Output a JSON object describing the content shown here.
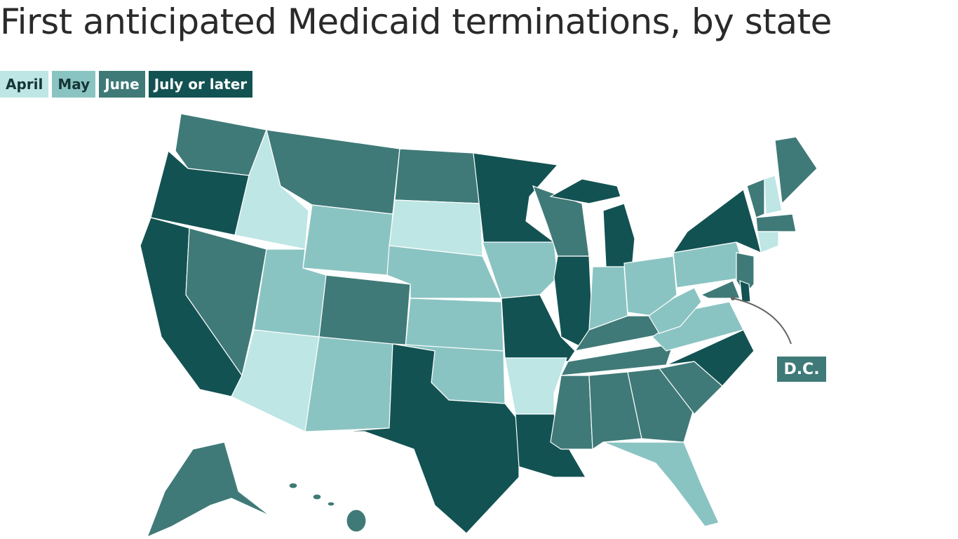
{
  "header": {
    "title": "First anticipated Medicaid terminations, by state"
  },
  "legend": {
    "items": [
      {
        "label": "April",
        "color": "#bde6e4"
      },
      {
        "label": "May",
        "color": "#8ac4c2"
      },
      {
        "label": "June",
        "color": "#3f7a78"
      },
      {
        "label": "July or later",
        "color": "#135252"
      }
    ]
  },
  "annotation": {
    "label": "D.C."
  }
}
